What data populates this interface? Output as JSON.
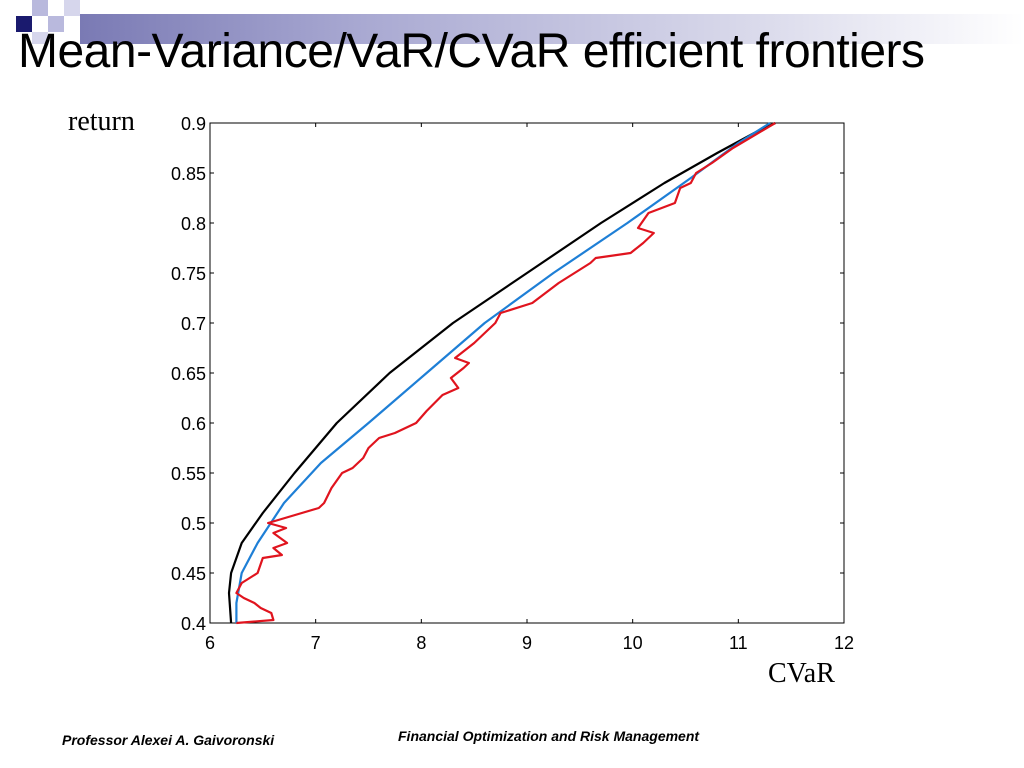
{
  "slide": {
    "title": "Mean-Variance/VaR/CVaR efficient frontiers",
    "footer_left": "Professor Alexei A. Gaivoronski",
    "footer_right": "Financial Optimization and Risk Management"
  },
  "colors": {
    "deco_navy": "#1a1a6e",
    "deco_lavender": "#b9b9dd",
    "deco_light": "#d6d6ec",
    "series_black": "#000000",
    "series_blue": "#1e7fd6",
    "series_red": "#e0141e"
  },
  "chart_data": {
    "type": "line",
    "xlabel": "CVaR",
    "ylabel": "return",
    "xlim": [
      6,
      12
    ],
    "ylim": [
      0.4,
      0.9
    ],
    "xticks": [
      "6",
      "7",
      "8",
      "9",
      "10",
      "11",
      "12"
    ],
    "yticks": [
      "0.4",
      "0.45",
      "0.5",
      "0.55",
      "0.6",
      "0.65",
      "0.7",
      "0.75",
      "0.8",
      "0.85",
      "0.9"
    ],
    "grid": false,
    "series": [
      {
        "color": "#000000",
        "x": [
          6.2,
          6.18,
          6.2,
          6.3,
          6.5,
          6.8,
          7.2,
          7.7,
          8.3,
          9.0,
          9.7,
          10.3,
          10.8,
          11.15,
          11.35
        ],
        "y": [
          0.4,
          0.43,
          0.45,
          0.48,
          0.51,
          0.55,
          0.6,
          0.65,
          0.7,
          0.75,
          0.8,
          0.84,
          0.87,
          0.89,
          0.9
        ]
      },
      {
        "color": "#1e7fd6",
        "x": [
          6.25,
          6.25,
          6.3,
          6.45,
          6.7,
          7.05,
          7.5,
          8.05,
          8.6,
          9.25,
          9.95,
          10.55,
          11.0,
          11.3
        ],
        "y": [
          0.4,
          0.42,
          0.45,
          0.48,
          0.52,
          0.56,
          0.6,
          0.65,
          0.7,
          0.75,
          0.8,
          0.845,
          0.88,
          0.9
        ]
      },
      {
        "color": "#e0141e",
        "x": [
          6.25,
          6.6,
          6.58,
          6.48,
          6.42,
          6.32,
          6.25,
          6.3,
          6.45,
          6.5,
          6.68,
          6.6,
          6.73,
          6.6,
          6.72,
          6.55,
          7.03,
          7.08,
          7.15,
          7.25,
          7.35,
          7.45,
          7.5,
          7.6,
          7.75,
          7.95,
          8.05,
          8.2,
          8.35,
          8.28,
          8.4,
          8.45,
          8.32,
          8.5,
          8.7,
          8.75,
          9.05,
          9.3,
          9.6,
          9.65,
          9.98,
          10.1,
          10.2,
          10.05,
          10.15,
          10.4,
          10.45,
          10.55,
          10.6,
          10.75,
          10.95,
          11.35
        ],
        "y": [
          0.4,
          0.403,
          0.41,
          0.415,
          0.42,
          0.425,
          0.43,
          0.44,
          0.45,
          0.465,
          0.468,
          0.475,
          0.48,
          0.49,
          0.495,
          0.5,
          0.515,
          0.52,
          0.535,
          0.55,
          0.555,
          0.565,
          0.575,
          0.585,
          0.59,
          0.6,
          0.612,
          0.628,
          0.635,
          0.645,
          0.655,
          0.66,
          0.665,
          0.68,
          0.7,
          0.71,
          0.72,
          0.74,
          0.76,
          0.765,
          0.77,
          0.78,
          0.79,
          0.795,
          0.81,
          0.82,
          0.835,
          0.84,
          0.85,
          0.86,
          0.875,
          0.9
        ]
      }
    ]
  }
}
